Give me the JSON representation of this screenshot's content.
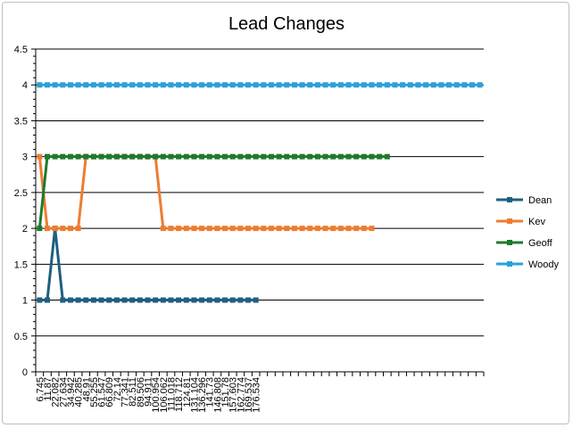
{
  "chart_data": {
    "type": "line",
    "title": "Lead Changes",
    "xlabel": "",
    "ylabel": "",
    "ylim": [
      0,
      4.5
    ],
    "ytick_step": 0.5,
    "ytick_labels": [
      "0",
      "0.5",
      "1",
      "1.5",
      "2",
      "2.5",
      "3",
      "3.5",
      "4",
      "4.5"
    ],
    "x_tick_labels": [
      "6.745",
      "11.87",
      "22.082",
      "27.634",
      "34.942",
      "40.285",
      "48.91",
      "55.255",
      "61.547",
      "66.809",
      "72.14",
      "77.341",
      "82.511",
      "89.506",
      "94.911",
      "100.954",
      "106.062",
      "111.018",
      "118.712",
      "124.81",
      "131.104",
      "136.296",
      "141.73",
      "146.808",
      "151.78",
      "157.603",
      "162.774",
      "169.537",
      "176.534"
    ],
    "x_tick_count_total": 58,
    "grid": true,
    "legend_position": "right",
    "series": [
      {
        "name": "Dean",
        "color": "#1f5f7f",
        "values": [
          1,
          1,
          2,
          1,
          1,
          1,
          1,
          1,
          1,
          1,
          1,
          1,
          1,
          1,
          1,
          1,
          1,
          1,
          1,
          1,
          1,
          1,
          1,
          1,
          1,
          1,
          1,
          1,
          1
        ]
      },
      {
        "name": "Kev",
        "color": "#ed7d31",
        "values": [
          3,
          2,
          2,
          2,
          2,
          2,
          3,
          3,
          3,
          3,
          3,
          3,
          3,
          3,
          3,
          3,
          2,
          2,
          2,
          2,
          2,
          2,
          2,
          2,
          2,
          2,
          2,
          2,
          2,
          2,
          2,
          2,
          2,
          2,
          2,
          2,
          2,
          2,
          2,
          2,
          2,
          2,
          2,
          2
        ]
      },
      {
        "name": "Geoff",
        "color": "#1e7a2e",
        "values": [
          2,
          3,
          3,
          3,
          3,
          3,
          3,
          3,
          3,
          3,
          3,
          3,
          3,
          3,
          3,
          3,
          3,
          3,
          3,
          3,
          3,
          3,
          3,
          3,
          3,
          3,
          3,
          3,
          3,
          3,
          3,
          3,
          3,
          3,
          3,
          3,
          3,
          3,
          3,
          3,
          3,
          3,
          3,
          3,
          3,
          3
        ]
      },
      {
        "name": "Woody",
        "color": "#2aa0d8",
        "values": [
          4,
          4,
          4,
          4,
          4,
          4,
          4,
          4,
          4,
          4,
          4,
          4,
          4,
          4,
          4,
          4,
          4,
          4,
          4,
          4,
          4,
          4,
          4,
          4,
          4,
          4,
          4,
          4,
          4,
          4,
          4,
          4,
          4,
          4,
          4,
          4,
          4,
          4,
          4,
          4,
          4,
          4,
          4,
          4,
          4,
          4,
          4,
          4,
          4,
          4,
          4,
          4,
          4,
          4,
          4,
          4,
          4,
          4
        ]
      }
    ]
  }
}
